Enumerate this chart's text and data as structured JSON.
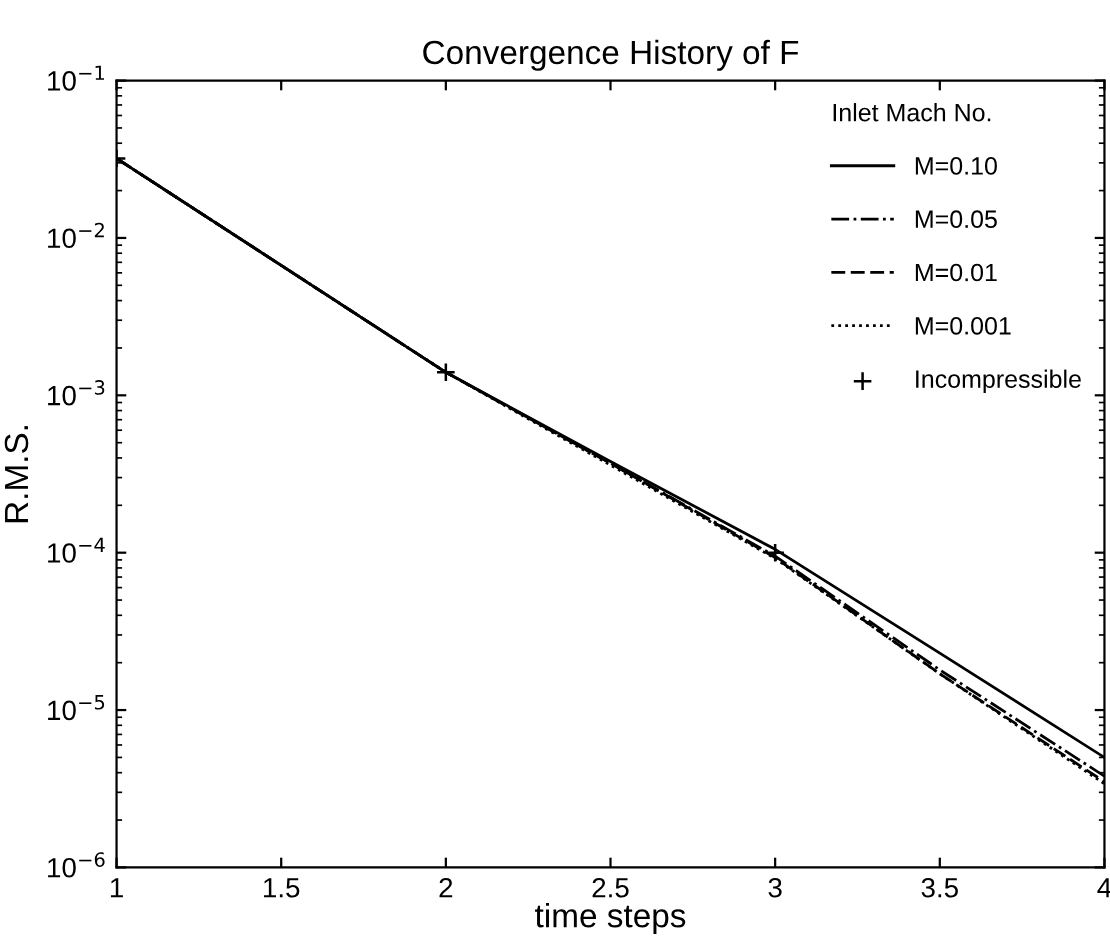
{
  "chart_data": {
    "type": "line",
    "title": "Convergence History of F",
    "xlabel": "time steps",
    "ylabel": "R.M.S.",
    "legend_title": "Inlet Mach No.",
    "legend": "top right",
    "grid": false,
    "log": "y",
    "xlim": [
      1,
      4
    ],
    "xticks": [
      1,
      1.5,
      2,
      2.5,
      3,
      3.5,
      4
    ],
    "ylim": [
      1e-06,
      0.1
    ],
    "yticks": [
      {
        "value": 1e-06,
        "label": "10$^{−6}$"
      },
      {
        "value": 1e-05,
        "label": "10$^{−5}$"
      },
      {
        "value": 0.0001,
        "label": "10$^{−4}$"
      },
      {
        "value": 0.001,
        "label": "10$^{−3}$"
      },
      {
        "value": 0.01,
        "label": "10$^{−2}$"
      },
      {
        "value": 0.1,
        "label": "10$^{−1}$"
      }
    ],
    "series": [
      {
        "name": "M=0.10",
        "color": "#000000",
        "line_style": "solid",
        "x": [
          1,
          2,
          2.5,
          3,
          3.5,
          4
        ],
        "values": [
          0.032,
          0.0014,
          0.00038,
          0.000105,
          2.3e-05,
          5e-06
        ]
      },
      {
        "name": "M=0.05",
        "color": "#000000",
        "line_style": "dashdot",
        "x": [
          1,
          2,
          2.5,
          3,
          3.5,
          4
        ],
        "values": [
          0.032,
          0.0014,
          0.00037,
          9.5e-05,
          1.8e-05,
          3.8e-06
        ]
      },
      {
        "name": "M=0.01",
        "color": "#000000",
        "line_style": "dashed",
        "x": [
          1,
          2,
          2.5,
          3,
          3.5,
          4
        ],
        "values": [
          0.032,
          0.0014,
          0.00037,
          9.3e-05,
          1.7e-05,
          3.5e-06
        ]
      },
      {
        "name": "M=0.001",
        "color": "#000000",
        "line_style": "dotted",
        "x": [
          1,
          2,
          2.5,
          3,
          3.5,
          4
        ],
        "values": [
          0.032,
          0.0014,
          0.00036,
          9.2e-05,
          1.7e-05,
          3.4e-06
        ]
      },
      {
        "name": "Incompressible",
        "color": "#000000",
        "type": "scatter",
        "marker": "cross",
        "x": [
          1,
          2,
          3
        ],
        "values": [
          0.032,
          0.0014,
          0.0001
        ]
      }
    ]
  }
}
